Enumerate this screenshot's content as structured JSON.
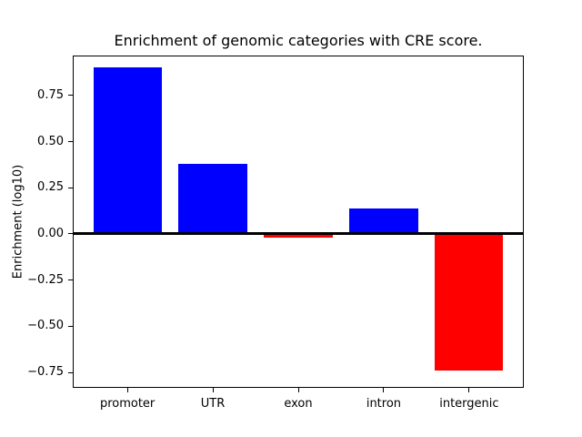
{
  "figure": {
    "title": "Enrichment of genomic categories with CRE score."
  },
  "chart_data": {
    "type": "bar",
    "title": "Enrichment of genomic categories with CRE score.",
    "xlabel": "",
    "ylabel": "Enrichment (log10)",
    "categories": [
      "promoter",
      "UTR",
      "exon",
      "intron",
      "intergenic"
    ],
    "values": [
      0.9,
      0.38,
      -0.02,
      0.14,
      -0.74
    ],
    "bar_width": 0.8,
    "positive_color": "#0000ff",
    "negative_color": "#ff0000",
    "zero_line_color": "#000000",
    "ylim": [
      -0.833,
      0.966
    ],
    "yticks": [
      0.75,
      0.5,
      0.25,
      0.0,
      -0.25,
      -0.5,
      -0.75
    ],
    "ytick_labels": [
      "0.75",
      "0.50",
      "0.25",
      "0.00",
      "−0.25",
      "−0.50",
      "−0.75"
    ],
    "grid": false,
    "legend": "none"
  }
}
